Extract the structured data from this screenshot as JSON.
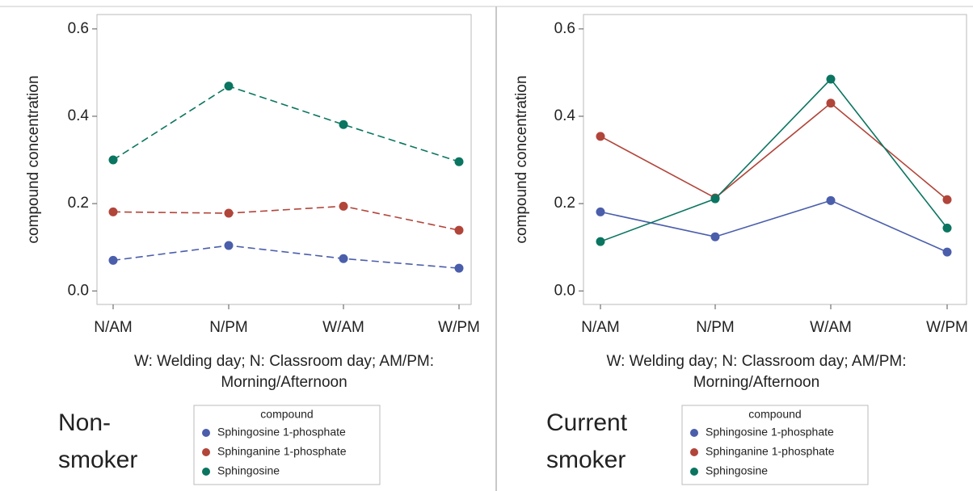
{
  "chart_data": [
    {
      "type": "line",
      "y_label": "compound concentration",
      "x_label": [
        "W: Welding day; N: Classroom day; AM/PM:",
        "Morning/Afternoon"
      ],
      "annotation": [
        "Non-",
        "smoker"
      ],
      "legend_title": "compound",
      "dashed": true,
      "categories": [
        "N/AM",
        "N/PM",
        "W/AM",
        "W/PM"
      ],
      "ylim": [
        -0.031,
        0.633
      ],
      "yticks": [
        {
          "value": 0,
          "label": "0.0"
        },
        0.2,
        0.4,
        0.6
      ],
      "series": [
        {
          "name": "Sphingosine 1-phosphate",
          "color": "#4a5eab",
          "values": [
            0.07,
            0.104,
            0.074,
            0.052
          ]
        },
        {
          "name": "Sphinganine 1-phosphate",
          "color": "#b1453a",
          "values": [
            0.181,
            0.178,
            0.194,
            0.139
          ]
        },
        {
          "name": "Sphingosine",
          "color": "#0a7560",
          "values": [
            0.3,
            0.469,
            0.381,
            0.296
          ]
        }
      ]
    },
    {
      "type": "line",
      "y_label": "compound concentration",
      "x_label": [
        "W: Welding day; N: Classroom day; AM/PM:",
        "Morning/Afternoon"
      ],
      "annotation": [
        "Current",
        "smoker"
      ],
      "legend_title": "compound",
      "dashed": false,
      "categories": [
        "N/AM",
        "N/PM",
        "W/AM",
        "W/PM"
      ],
      "ylim": [
        -0.031,
        0.633
      ],
      "yticks": [
        {
          "value": 0,
          "label": "0.0"
        },
        0.2,
        0.4,
        0.6
      ],
      "series": [
        {
          "name": "Sphingosine 1-phosphate",
          "color": "#4a5eab",
          "values": [
            0.181,
            0.124,
            0.207,
            0.089
          ]
        },
        {
          "name": "Sphinganine 1-phosphate",
          "color": "#b1453a",
          "values": [
            0.354,
            0.213,
            0.43,
            0.209
          ]
        },
        {
          "name": "Sphingosine",
          "color": "#0a7560",
          "values": [
            0.113,
            0.211,
            0.485,
            0.144
          ]
        }
      ]
    }
  ]
}
